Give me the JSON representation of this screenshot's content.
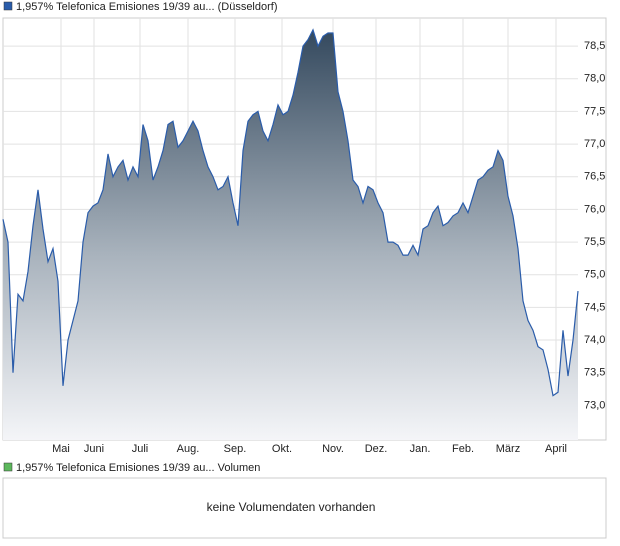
{
  "chart_data": {
    "type": "area",
    "series": [
      {
        "name": "1,957% Telefonica Emisiones 19/39 au... (Düsseldorf)",
        "color": "#2a5caa",
        "values": [
          75.85,
          75.5,
          73.5,
          74.7,
          74.6,
          75.05,
          75.75,
          76.3,
          75.7,
          75.2,
          75.4,
          74.9,
          73.3,
          74.0,
          74.3,
          74.6,
          75.5,
          75.95,
          76.05,
          76.1,
          76.3,
          76.85,
          76.5,
          76.65,
          76.75,
          76.45,
          76.65,
          76.5,
          77.3,
          77.05,
          76.45,
          76.65,
          76.9,
          77.3,
          77.35,
          76.95,
          77.05,
          77.2,
          77.35,
          77.2,
          76.9,
          76.65,
          76.5,
          76.3,
          76.35,
          76.5,
          76.1,
          75.75,
          76.9,
          77.35,
          77.45,
          77.5,
          77.2,
          77.05,
          77.3,
          77.6,
          77.45,
          77.5,
          77.75,
          78.1,
          78.5,
          78.6,
          78.75,
          78.5,
          78.65,
          78.7,
          78.7,
          77.8,
          77.5,
          77.05,
          76.45,
          76.35,
          76.1,
          76.35,
          76.3,
          76.1,
          75.95,
          75.5,
          75.5,
          75.45,
          75.3,
          75.3,
          75.45,
          75.3,
          75.7,
          75.75,
          75.95,
          76.05,
          75.75,
          75.8,
          75.9,
          75.95,
          76.1,
          75.95,
          76.2,
          76.45,
          76.5,
          76.6,
          76.65,
          76.9,
          76.75,
          76.2,
          75.9,
          75.4,
          74.6,
          74.3,
          74.15,
          73.9,
          73.85,
          73.55,
          73.15,
          73.2,
          74.15,
          73.45,
          74.0,
          74.75
        ]
      }
    ],
    "xlim": [
      0,
      115
    ],
    "xticks": [
      {
        "value": 11.6,
        "label": "Mai"
      },
      {
        "value": 18.2,
        "label": "Juni"
      },
      {
        "value": 27.4,
        "label": "Juli"
      },
      {
        "value": 37,
        "label": "Aug."
      },
      {
        "value": 46.4,
        "label": "Sep."
      },
      {
        "value": 55.8,
        "label": "Okt."
      },
      {
        "value": 66,
        "label": "Nov."
      },
      {
        "value": 74.6,
        "label": "Dez."
      },
      {
        "value": 83.4,
        "label": "Jan."
      },
      {
        "value": 92,
        "label": "Feb."
      },
      {
        "value": 101,
        "label": "März"
      },
      {
        "value": 110.6,
        "label": "April"
      }
    ],
    "ylim": [
      72.47,
      78.93
    ],
    "yticks": [
      {
        "value": 73,
        "label": "73,0"
      },
      {
        "value": 73.5,
        "label": "73,5"
      },
      {
        "value": 74,
        "label": "74,0"
      },
      {
        "value": 74.5,
        "label": "74,5"
      },
      {
        "value": 75,
        "label": "75,0"
      },
      {
        "value": 75.5,
        "label": "75,5"
      },
      {
        "value": 76,
        "label": "76,0"
      },
      {
        "value": 76.5,
        "label": "76,5"
      },
      {
        "value": 77,
        "label": "77,0"
      },
      {
        "value": 77.5,
        "label": "77,5"
      },
      {
        "value": 78,
        "label": "78,0"
      },
      {
        "value": 78.5,
        "label": "78,5"
      }
    ],
    "grid": true
  },
  "volume_panel": {
    "legend": "1,957% Telefonica Emisiones 19/39 au... Volumen",
    "color": "#5cb85c",
    "message": "keine Volumendaten vorhanden"
  }
}
